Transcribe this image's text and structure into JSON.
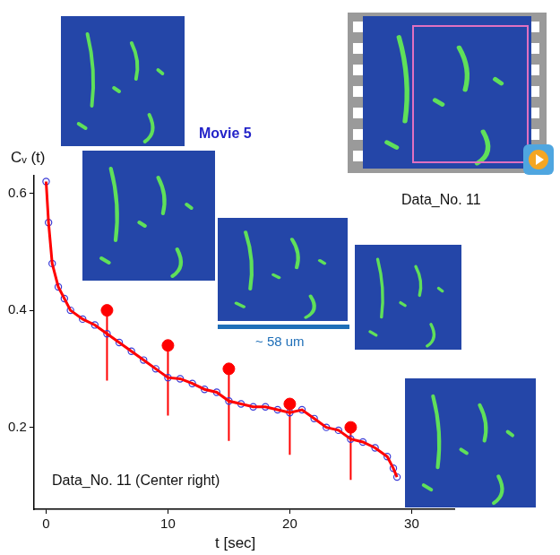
{
  "chart_data": {
    "type": "scatter",
    "x_label": "t [sec]",
    "y_label": "Cᵥ (t)",
    "xlim": [
      -1,
      33.5
    ],
    "xticks": [
      0,
      10,
      20,
      30
    ],
    "ylim": [
      0.06,
      0.63
    ],
    "yticks": [
      0.2,
      0.4,
      0.6
    ],
    "grid": false,
    "series": [
      {
        "type": "scatter",
        "color": "#3a3ad6",
        "marker": "circle",
        "x": [
          0,
          0.2,
          0.5,
          1,
          1.5,
          2,
          3,
          4,
          5,
          6,
          7,
          8,
          9,
          10,
          11,
          12,
          13,
          14,
          15,
          16,
          17,
          18,
          19,
          20,
          21,
          22,
          23,
          24,
          25,
          26,
          27,
          28,
          28.5,
          28.8
        ],
        "values": [
          0.62,
          0.55,
          0.48,
          0.44,
          0.42,
          0.4,
          0.385,
          0.375,
          0.36,
          0.345,
          0.33,
          0.315,
          0.3,
          0.285,
          0.283,
          0.275,
          0.265,
          0.26,
          0.245,
          0.24,
          0.235,
          0.235,
          0.23,
          0.225,
          0.23,
          0.215,
          0.2,
          0.195,
          0.18,
          0.175,
          0.165,
          0.15,
          0.13,
          0.115
        ]
      },
      {
        "type": "line",
        "color": "#ff0000",
        "line_style": "solid",
        "x": [
          0,
          0.2,
          0.5,
          1,
          1.5,
          2,
          3,
          4,
          5,
          6,
          7,
          8,
          9,
          10,
          11,
          12,
          13,
          14,
          15,
          16,
          17,
          18,
          19,
          20,
          21,
          22,
          23,
          24,
          25,
          26,
          27,
          28,
          28.5,
          28.8
        ],
        "values": [
          0.62,
          0.55,
          0.48,
          0.44,
          0.42,
          0.4,
          0.385,
          0.375,
          0.36,
          0.345,
          0.33,
          0.315,
          0.3,
          0.285,
          0.283,
          0.275,
          0.265,
          0.26,
          0.245,
          0.24,
          0.235,
          0.235,
          0.23,
          0.225,
          0.23,
          0.215,
          0.2,
          0.195,
          0.18,
          0.175,
          0.165,
          0.15,
          0.13,
          0.115
        ]
      },
      {
        "type": "lollipop",
        "color": "#ff0000",
        "marker": "circle",
        "x": [
          5,
          10,
          15,
          20,
          25
        ],
        "values": [
          0.4,
          0.34,
          0.3,
          0.24,
          0.2
        ],
        "lower": [
          0.28,
          0.22,
          0.177,
          0.153,
          0.11
        ]
      }
    ],
    "annotations": [
      "Movie 5",
      "Data_No. 11",
      "~ 58 um",
      "Data_No. 11 (Center right)"
    ]
  }
}
